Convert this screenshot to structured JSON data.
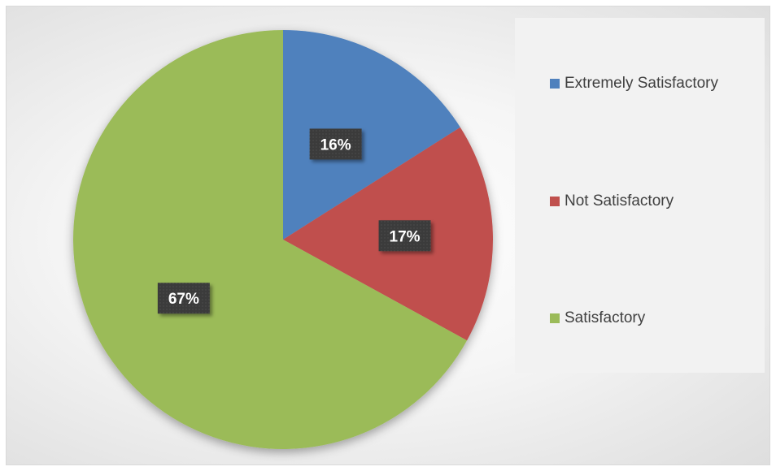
{
  "chart_data": {
    "type": "pie",
    "title": "",
    "categories": [
      "Extremely Satisfactory",
      "Not Satisfactory",
      "Satisfactory"
    ],
    "values": [
      16,
      17,
      67
    ],
    "data_labels": [
      "16%",
      "17%",
      "67%"
    ],
    "colors": [
      "#4f81bd",
      "#c0504d",
      "#9bbb59"
    ],
    "label_box_color": "#3a3a3a",
    "start_angle": "12 o'clock",
    "direction": "clockwise",
    "legend_position": "right"
  },
  "legend": {
    "items": [
      {
        "label": "Extremely Satisfactory",
        "color": "#4f81bd"
      },
      {
        "label": "Not Satisfactory",
        "color": "#c0504d"
      },
      {
        "label": "Satisfactory",
        "color": "#9bbb59"
      }
    ]
  }
}
